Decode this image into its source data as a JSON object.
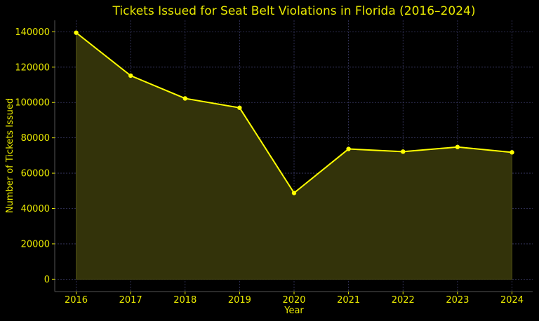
{
  "chart_data": {
    "type": "area",
    "title": "Tickets Issued for Seat Belt Violations in Florida (2016–2024)",
    "xlabel": "Year",
    "ylabel": "Number of Tickets Issued",
    "x": [
      "2016",
      "2017",
      "2018",
      "2019",
      "2020",
      "2021",
      "2022",
      "2023",
      "2024"
    ],
    "series": [
      {
        "values": [
          139500,
          115200,
          102300,
          97000,
          48800,
          73700,
          72200,
          74800,
          71800
        ]
      }
    ],
    "yticks": [
      "0",
      "20000",
      "40000",
      "60000",
      "80000",
      "100000",
      "120000",
      "140000"
    ],
    "ylim": [
      -7000,
      146500
    ],
    "grid": true,
    "legend": "none",
    "colors": {
      "background": "#000000",
      "line": "#ffff00",
      "fill": "#33330a",
      "text": "#e8e800",
      "grid": "#3a3a66"
    }
  }
}
